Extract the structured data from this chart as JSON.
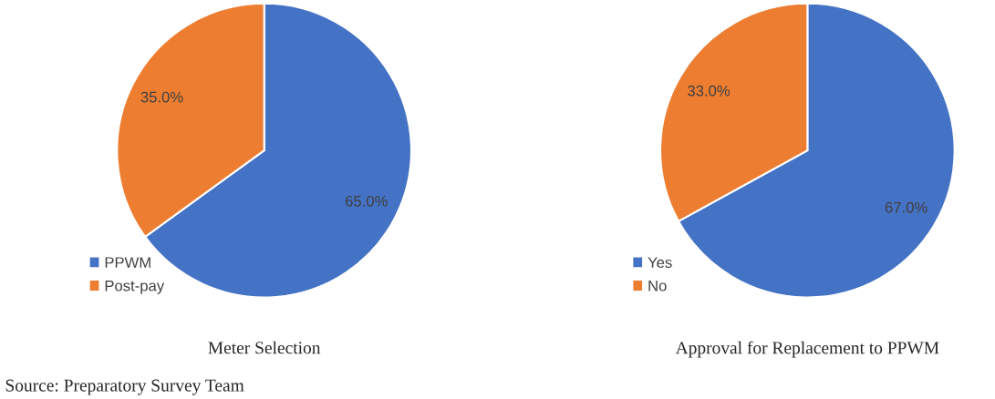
{
  "chart_data": [
    {
      "type": "pie",
      "title": "Meter Selection",
      "categories": [
        "PPWM",
        "Post-pay"
      ],
      "values": [
        65,
        35
      ],
      "colors": [
        "#4472c4",
        "#ed7d31"
      ],
      "value_labels": [
        "65.0%",
        "35.0%"
      ],
      "legend": "bottom left",
      "annotations": [
        "Source: Preparatory Survey Team"
      ]
    },
    {
      "type": "pie",
      "title": "Approval for Replacement to PPWM",
      "categories": [
        "Yes",
        "No"
      ],
      "values": [
        67,
        33
      ],
      "colors": [
        "#4472c4",
        "#ed7d31"
      ],
      "value_labels": [
        "67.0%",
        "33.0%"
      ],
      "legend": "bottom left"
    }
  ]
}
